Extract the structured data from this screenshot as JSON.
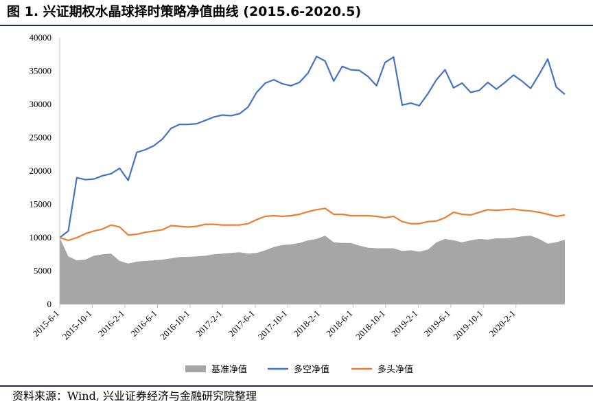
{
  "header": {
    "title": "图 1. 兴证期权水晶球择时策略净值曲线 (2015.6-2020.5)"
  },
  "footer": {
    "source": "资料来源：Wind, 兴业证券经济与金融研究院整理"
  },
  "chart_data": {
    "type": "line",
    "title": "",
    "xlabel": "",
    "ylabel": "",
    "ylim": [
      0,
      40000
    ],
    "y_ticks": [
      0,
      5000,
      10000,
      15000,
      20000,
      25000,
      30000,
      35000,
      40000
    ],
    "x_tick_labels": [
      "2015-6-1",
      "2015-10-1",
      "2016-2-1",
      "2016-6-1",
      "2016-10-1",
      "2017-2-1",
      "2017-6-1",
      "2017-10-1",
      "2018-2-1",
      "2018-6-1",
      "2018-10-1",
      "2019-2-1",
      "2019-6-1",
      "2019-10-1",
      "2020-2-1"
    ],
    "x": [
      "2015-6",
      "2015-7",
      "2015-8",
      "2015-9",
      "2015-10",
      "2015-11",
      "2015-12",
      "2016-1",
      "2016-2",
      "2016-3",
      "2016-4",
      "2016-5",
      "2016-6",
      "2016-7",
      "2016-8",
      "2016-9",
      "2016-10",
      "2016-11",
      "2016-12",
      "2017-1",
      "2017-2",
      "2017-3",
      "2017-4",
      "2017-5",
      "2017-6",
      "2017-7",
      "2017-8",
      "2017-9",
      "2017-10",
      "2017-11",
      "2017-12",
      "2018-1",
      "2018-2",
      "2018-3",
      "2018-4",
      "2018-5",
      "2018-6",
      "2018-7",
      "2018-8",
      "2018-9",
      "2018-10",
      "2018-11",
      "2018-12",
      "2019-1",
      "2019-2",
      "2019-3",
      "2019-4",
      "2019-5",
      "2019-6",
      "2019-7",
      "2019-8",
      "2019-9",
      "2019-10",
      "2019-11",
      "2019-12",
      "2020-1",
      "2020-2",
      "2020-3",
      "2020-4",
      "2020-5"
    ],
    "grid": false,
    "legend_position": "bottom",
    "series": [
      {
        "name": "基准净值",
        "type": "area",
        "color": "#a6a6a6",
        "values": [
          10000,
          7200,
          6600,
          6700,
          7300,
          7500,
          7600,
          6500,
          6100,
          6400,
          6500,
          6600,
          6700,
          6900,
          7100,
          7100,
          7200,
          7300,
          7500,
          7600,
          7700,
          7800,
          7600,
          7700,
          8100,
          8600,
          8900,
          9000,
          9200,
          9600,
          9800,
          10300,
          9300,
          9200,
          9200,
          8800,
          8500,
          8400,
          8400,
          8400,
          8000,
          8100,
          7900,
          8200,
          9300,
          9800,
          9600,
          9300,
          9600,
          9800,
          9700,
          9900,
          9900,
          10000,
          10200,
          10300,
          9800,
          9100,
          9300,
          9700
        ]
      },
      {
        "name": "多空净值",
        "type": "line",
        "color": "#4472c4",
        "values": [
          10000,
          11000,
          19000,
          18700,
          18800,
          19300,
          19600,
          20400,
          18600,
          22800,
          23200,
          23800,
          24800,
          26400,
          27000,
          27000,
          27100,
          27600,
          28100,
          28400,
          28300,
          28600,
          29600,
          31800,
          33200,
          33700,
          33100,
          32800,
          33300,
          34700,
          37200,
          36500,
          33500,
          35700,
          35200,
          35100,
          34200,
          32800,
          36300,
          37100,
          29900,
          30200,
          29800,
          31600,
          33700,
          35200,
          32500,
          33200,
          31800,
          32100,
          33300,
          32300,
          33300,
          34400,
          33500,
          32400,
          34500,
          36800,
          32600,
          31500
        ]
      },
      {
        "name": "多头净值",
        "type": "line",
        "color": "#ed7d31",
        "values": [
          10000,
          9600,
          10000,
          10600,
          11000,
          11300,
          11900,
          11600,
          10400,
          10500,
          10800,
          11000,
          11200,
          11800,
          11700,
          11600,
          11700,
          12000,
          12000,
          11900,
          11900,
          11900,
          12100,
          12700,
          13200,
          13300,
          13200,
          13300,
          13500,
          13900,
          14200,
          14400,
          13500,
          13500,
          13300,
          13300,
          13300,
          13200,
          13000,
          13200,
          12400,
          12100,
          12100,
          12400,
          12500,
          13000,
          13800,
          13500,
          13400,
          13800,
          14200,
          14100,
          14200,
          14300,
          14100,
          14000,
          13800,
          13500,
          13200,
          13400
        ]
      }
    ]
  }
}
